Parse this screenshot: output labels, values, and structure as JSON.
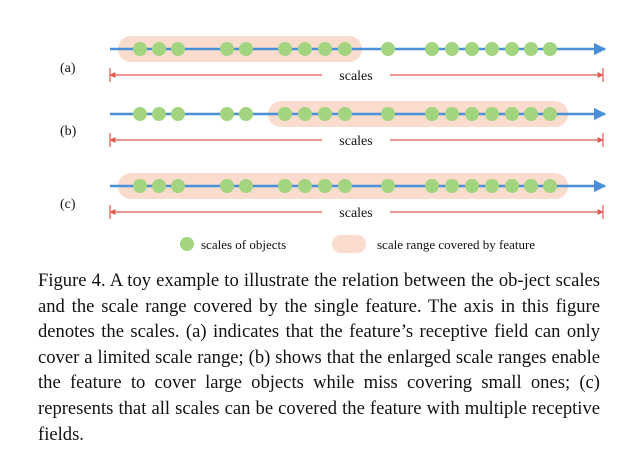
{
  "figure": {
    "rows": [
      {
        "label": "(a)",
        "scales_label": "scales"
      },
      {
        "label": "(b)",
        "scales_label": "scales"
      },
      {
        "label": "(c)",
        "scales_label": "scales"
      }
    ],
    "legend": {
      "objects_label": "scales of objects",
      "range_label": "scale range covered by feature"
    },
    "colors": {
      "axis": "#4a90d9",
      "scale_arrow": "#e05a4e",
      "dot": "#a3d47f",
      "range_band": "#f9dccd"
    }
  },
  "caption": {
    "text": "Figure 4. A toy example to illustrate the relation between the ob-­ject scales and the scale range covered by the single feature. The axis in this figure denotes the scales. (a) indicates that the feature’s receptive field can only cover a limited scale range; (b) shows that the enlarged scale ranges enable the feature to cover large objects while miss covering small ones; (c) represents that all scales can be covered the feature with multiple receptive fields."
  }
}
